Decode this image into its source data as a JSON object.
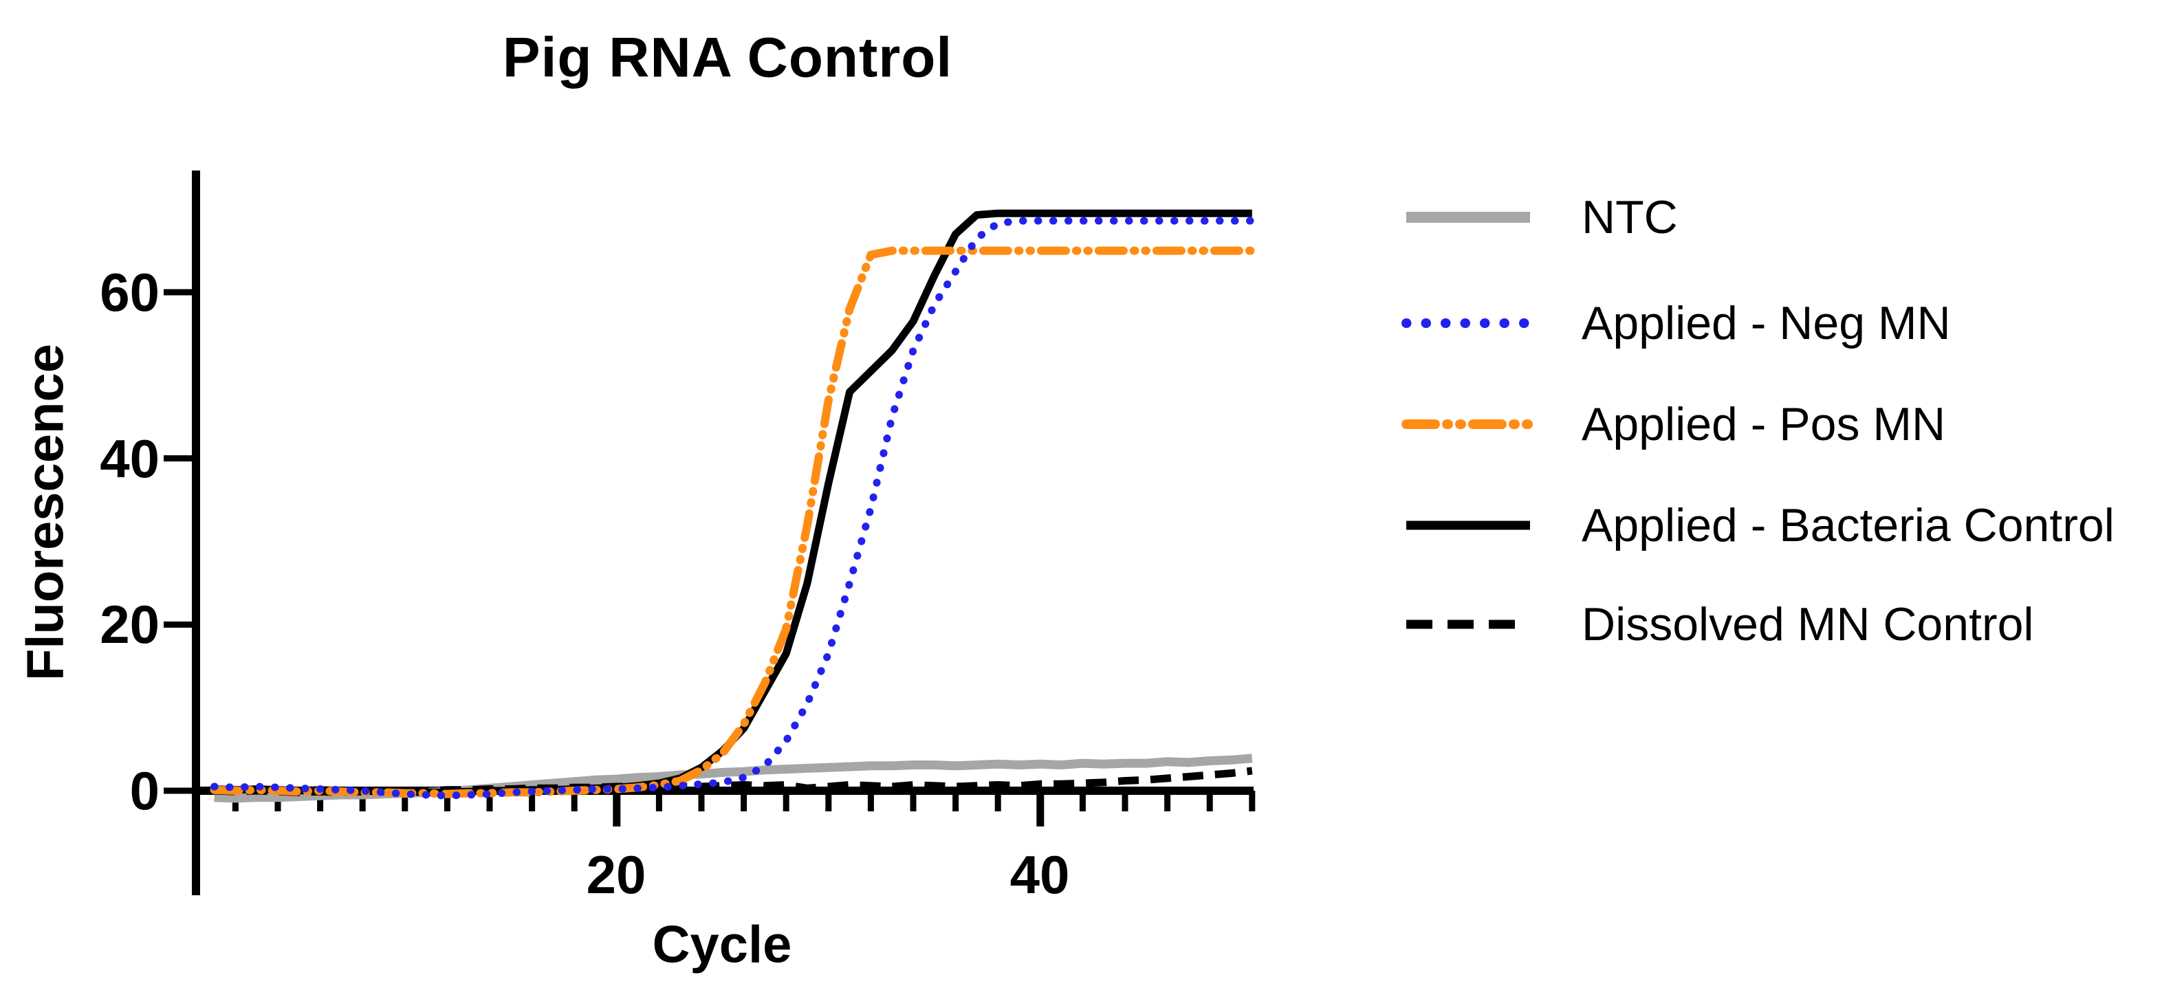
{
  "title": "Pig RNA Control",
  "axes": {
    "x": {
      "label": "Cycle",
      "min": 0,
      "max": 50,
      "minor_tick_step": 2,
      "major_ticks": [
        20,
        40
      ],
      "tick_labels": [
        "20",
        "40"
      ]
    },
    "y": {
      "label": "Fluorescence",
      "min": 0,
      "max": 74,
      "major_ticks": [
        0,
        20,
        40,
        60
      ],
      "tick_labels": [
        "0",
        "20",
        "40",
        "60"
      ]
    }
  },
  "legend": [
    {
      "label": "NTC",
      "color": "#a6a6a6",
      "style": "solid",
      "width": 16
    },
    {
      "label": "Applied - Neg MN",
      "color": "#2222ee",
      "style": "dotted",
      "width": 14
    },
    {
      "label": "Applied - Pos MN",
      "color": "#ff8c14",
      "style": "dashdotdot",
      "width": 14
    },
    {
      "label": "Applied - Bacteria Control",
      "color": "#000000",
      "style": "solid",
      "width": 13
    },
    {
      "label": "Dissolved MN Control",
      "color": "#000000",
      "style": "dashed",
      "width": 13
    }
  ],
  "chart_data": {
    "type": "line",
    "title": "Pig RNA Control",
    "xlabel": "Cycle",
    "ylabel": "Fluorescence",
    "xlim": [
      0,
      51
    ],
    "ylim": [
      -4,
      75
    ],
    "grid": false,
    "legend_position": "right",
    "x": [
      1,
      2,
      3,
      4,
      5,
      6,
      7,
      8,
      9,
      10,
      11,
      12,
      13,
      14,
      15,
      16,
      17,
      18,
      19,
      20,
      21,
      22,
      23,
      24,
      25,
      26,
      27,
      28,
      29,
      30,
      31,
      32,
      33,
      34,
      35,
      36,
      37,
      38,
      39,
      40,
      41,
      42,
      43,
      44,
      45,
      46,
      47,
      48,
      49,
      50
    ],
    "series": [
      {
        "name": "NTC",
        "color": "#a6a6a6",
        "style": "solid",
        "width": 13,
        "values": [
          -0.8,
          -0.9,
          -0.8,
          -0.8,
          -0.7,
          -0.6,
          -0.5,
          -0.5,
          -0.4,
          -0.3,
          -0.2,
          -0.1,
          0.1,
          0.3,
          0.5,
          0.7,
          0.9,
          1.1,
          1.3,
          1.4,
          1.6,
          1.7,
          1.9,
          2.0,
          2.2,
          2.3,
          2.5,
          2.6,
          2.7,
          2.8,
          2.9,
          3.0,
          3.0,
          3.1,
          3.1,
          3.0,
          3.1,
          3.2,
          3.1,
          3.2,
          3.1,
          3.3,
          3.2,
          3.3,
          3.3,
          3.5,
          3.4,
          3.6,
          3.7,
          3.9
        ]
      },
      {
        "name": "Dissolved MN Control",
        "color": "#000000",
        "style": "dashed",
        "width": 11,
        "values": [
          0.0,
          -0.1,
          0.0,
          -0.1,
          -0.2,
          -0.1,
          -0.2,
          -0.1,
          -0.1,
          0.0,
          0.0,
          0.1,
          0.1,
          0.2,
          0.2,
          0.3,
          0.3,
          0.4,
          0.4,
          0.5,
          0.5,
          0.6,
          0.5,
          0.5,
          0.6,
          0.7,
          0.6,
          0.7,
          0.3,
          0.5,
          0.7,
          0.6,
          0.5,
          0.7,
          0.6,
          0.5,
          0.6,
          0.7,
          0.6,
          0.8,
          0.8,
          0.9,
          1.0,
          1.2,
          1.3,
          1.5,
          1.7,
          1.9,
          2.1,
          2.4
        ]
      },
      {
        "name": "Applied - Bacteria Control",
        "color": "#000000",
        "style": "solid",
        "width": 11,
        "values": [
          0.2,
          0.1,
          0.2,
          0.1,
          0.0,
          0.1,
          0.0,
          0.0,
          -0.1,
          -0.1,
          -0.2,
          -0.2,
          -0.1,
          0.0,
          0.0,
          0.1,
          0.1,
          0.2,
          0.3,
          0.4,
          0.6,
          0.9,
          1.5,
          2.8,
          4.8,
          7.5,
          12.0,
          16.5,
          25.0,
          37.0,
          48.0,
          50.5,
          53.0,
          56.5,
          62.0,
          67.0,
          69.3,
          69.5,
          69.5,
          69.5,
          69.5,
          69.5,
          69.5,
          69.5,
          69.5,
          69.5,
          69.5,
          69.5,
          69.5,
          69.5
        ]
      },
      {
        "name": "Applied - Pos MN",
        "color": "#ff8c14",
        "style": "dashdotdot",
        "width": 12,
        "values": [
          0.1,
          0.0,
          0.1,
          0.0,
          -0.1,
          0.0,
          -0.1,
          -0.2,
          -0.2,
          -0.3,
          -0.3,
          -0.4,
          -0.3,
          -0.3,
          -0.2,
          -0.2,
          -0.1,
          0.0,
          0.1,
          0.2,
          0.4,
          0.7,
          1.2,
          2.5,
          4.5,
          8.0,
          13.0,
          19.5,
          32.0,
          47.0,
          58.0,
          64.5,
          65.0,
          65.0,
          65.0,
          65.0,
          65.0,
          65.0,
          65.0,
          65.0,
          65.0,
          65.0,
          65.0,
          65.0,
          65.0,
          65.0,
          65.0,
          65.0,
          65.0,
          65.0
        ]
      },
      {
        "name": "Applied - Neg MN",
        "color": "#2222ee",
        "style": "dotted",
        "width": 11,
        "values": [
          0.5,
          0.4,
          0.5,
          0.4,
          0.3,
          0.2,
          0.1,
          0.0,
          -0.2,
          -0.4,
          -0.5,
          -0.6,
          -0.5,
          -0.4,
          -0.2,
          -0.1,
          0.0,
          0.1,
          0.2,
          0.2,
          0.3,
          0.4,
          0.6,
          0.8,
          1.0,
          1.6,
          3.0,
          6.0,
          10.5,
          16.5,
          25.0,
          34.0,
          45.0,
          53.0,
          58.5,
          62.5,
          66.5,
          68.3,
          68.6,
          68.6,
          68.6,
          68.6,
          68.6,
          68.6,
          68.6,
          68.6,
          68.6,
          68.6,
          68.6,
          68.6
        ]
      }
    ]
  }
}
